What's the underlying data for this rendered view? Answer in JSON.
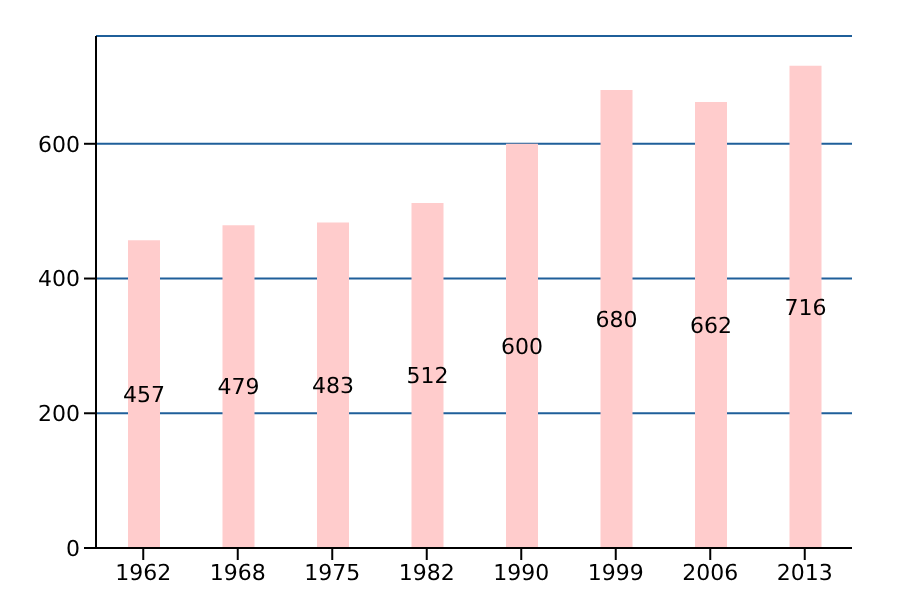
{
  "chart_data": {
    "type": "bar",
    "categories": [
      "1962",
      "1968",
      "1975",
      "1982",
      "1990",
      "1999",
      "2006",
      "2013"
    ],
    "values": [
      457,
      479,
      483,
      512,
      600,
      680,
      662,
      716
    ],
    "color": "#ffcccc",
    "ylim": [
      0,
      760
    ],
    "yticks": [
      0,
      200,
      400,
      600
    ],
    "grid": "y",
    "data_labels": true
  }
}
